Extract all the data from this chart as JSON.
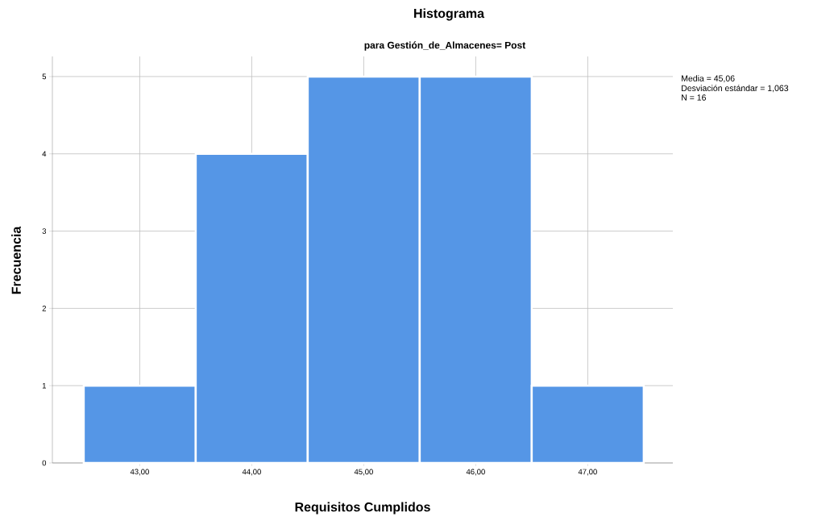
{
  "chart_data": {
    "type": "histogram",
    "title": "Histograma",
    "subtitle": "para Gestión_de_Almacenes= Post",
    "xlabel": "Requisitos Cumplidos",
    "ylabel": "Frecuencia",
    "annotations": [
      "Media = 45,06",
      "Desviación estándar = 1,063",
      "N = 16"
    ],
    "bins": [
      42.5,
      43.5,
      44.5,
      45.5,
      46.5,
      47.5
    ],
    "values": [
      1,
      4,
      5,
      5,
      1
    ],
    "color": "#5596e6",
    "xlim": [
      42.22,
      47.76
    ],
    "ylim": [
      0,
      5.26
    ],
    "xticks": [
      {
        "value": 43,
        "label": "43,00"
      },
      {
        "value": 44,
        "label": "44,00"
      },
      {
        "value": 45,
        "label": "45,00"
      },
      {
        "value": 46,
        "label": "46,00"
      },
      {
        "value": 47,
        "label": "47,00"
      }
    ],
    "yticks": [
      0,
      1,
      2,
      3,
      4,
      5
    ],
    "grid": true
  }
}
